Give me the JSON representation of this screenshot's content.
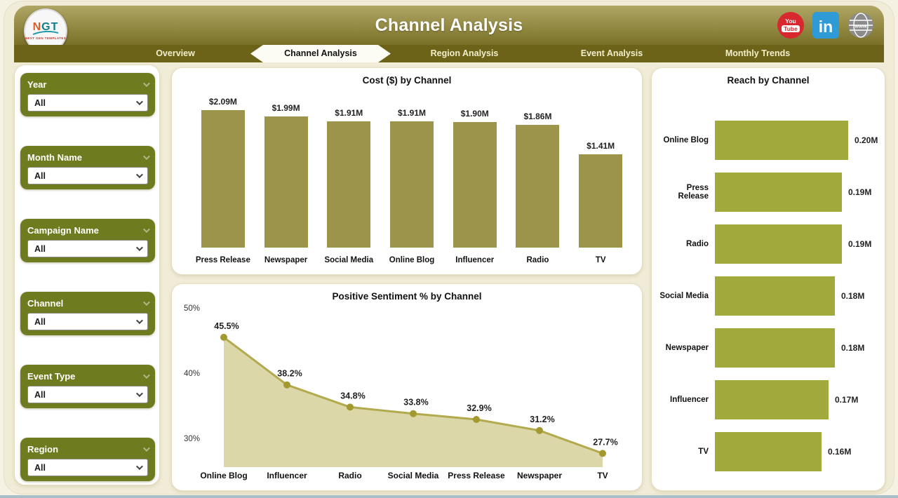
{
  "header": {
    "title": "Channel Analysis",
    "logo": {
      "text_n": "N",
      "text_gt": "GT",
      "subtext": "NEXT GEN TEMPLATES"
    },
    "social": [
      {
        "name": "youtube-icon",
        "line1": "You",
        "line2": "Tube"
      },
      {
        "name": "linkedin-icon",
        "label": "in"
      },
      {
        "name": "website-icon",
        "label": "www"
      }
    ]
  },
  "nav": {
    "tabs": [
      {
        "label": "Overview",
        "active": false
      },
      {
        "label": "Channel Analysis",
        "active": true
      },
      {
        "label": "Region Analysis",
        "active": false
      },
      {
        "label": "Event Analysis",
        "active": false
      },
      {
        "label": "Monthly Trends",
        "active": false
      }
    ]
  },
  "filters": [
    {
      "label": "Year",
      "value": "All"
    },
    {
      "label": "Month Name",
      "value": "All"
    },
    {
      "label": "Campaign Name",
      "value": "All"
    },
    {
      "label": "Channel",
      "value": "All"
    },
    {
      "label": "Event Type",
      "value": "All"
    },
    {
      "label": "Region",
      "value": "All"
    }
  ],
  "chart_data": [
    {
      "type": "bar",
      "title": "Cost ($) by Channel",
      "categories": [
        "Press Release",
        "Newspaper",
        "Social Media",
        "Online Blog",
        "Influencer",
        "Radio",
        "TV"
      ],
      "values": [
        2.09,
        1.99,
        1.91,
        1.91,
        1.9,
        1.86,
        1.41
      ],
      "value_labels": [
        "$2.09M",
        "$1.99M",
        "$1.91M",
        "$1.91M",
        "$1.90M",
        "$1.86M",
        "$1.41M"
      ],
      "ylabel": "Cost ($)",
      "ylim": [
        0,
        2.2
      ],
      "grid": false,
      "bar_color": "#9b944a"
    },
    {
      "type": "area",
      "title": "Positive Sentiment % by Channel",
      "categories": [
        "Online Blog",
        "Influencer",
        "Radio",
        "Social Media",
        "Press Release",
        "Newspaper",
        "TV"
      ],
      "values": [
        45.5,
        38.2,
        34.8,
        33.8,
        32.9,
        31.2,
        27.7
      ],
      "value_labels": [
        "45.5%",
        "38.2%",
        "34.8%",
        "33.8%",
        "32.9%",
        "31.2%",
        "27.7%"
      ],
      "yticks": [
        {
          "v": 50,
          "label": "50%"
        },
        {
          "v": 40,
          "label": "40%"
        },
        {
          "v": 30,
          "label": "30%"
        }
      ],
      "ylim": [
        25,
        52
      ],
      "grid": false,
      "line_color": "#b3a94d",
      "fill_color": "#dbd7a8",
      "dot_color": "#a2992f"
    },
    {
      "type": "bar-horizontal",
      "title": "Reach by Channel",
      "categories": [
        "Online Blog",
        "Press Release",
        "Radio",
        "Social Media",
        "Newspaper",
        "Influencer",
        "TV"
      ],
      "values": [
        0.2,
        0.19,
        0.19,
        0.18,
        0.18,
        0.17,
        0.16
      ],
      "value_labels": [
        "0.20M",
        "0.19M",
        "0.19M",
        "0.18M",
        "0.18M",
        "0.17M",
        "0.16M"
      ],
      "xlim": [
        0,
        0.21
      ],
      "grid": false,
      "bar_color": "#a2a93c"
    }
  ],
  "colors": {
    "header_gradient_top": "#b0a765",
    "header_gradient_bottom": "#6c6318",
    "filter_box": "#6e7c1f",
    "page_background": "#f1ecd7",
    "youtube_red": "#d7282f",
    "linkedin_blue": "#2e9bd6",
    "globe_gray": "#8b8b8b"
  }
}
